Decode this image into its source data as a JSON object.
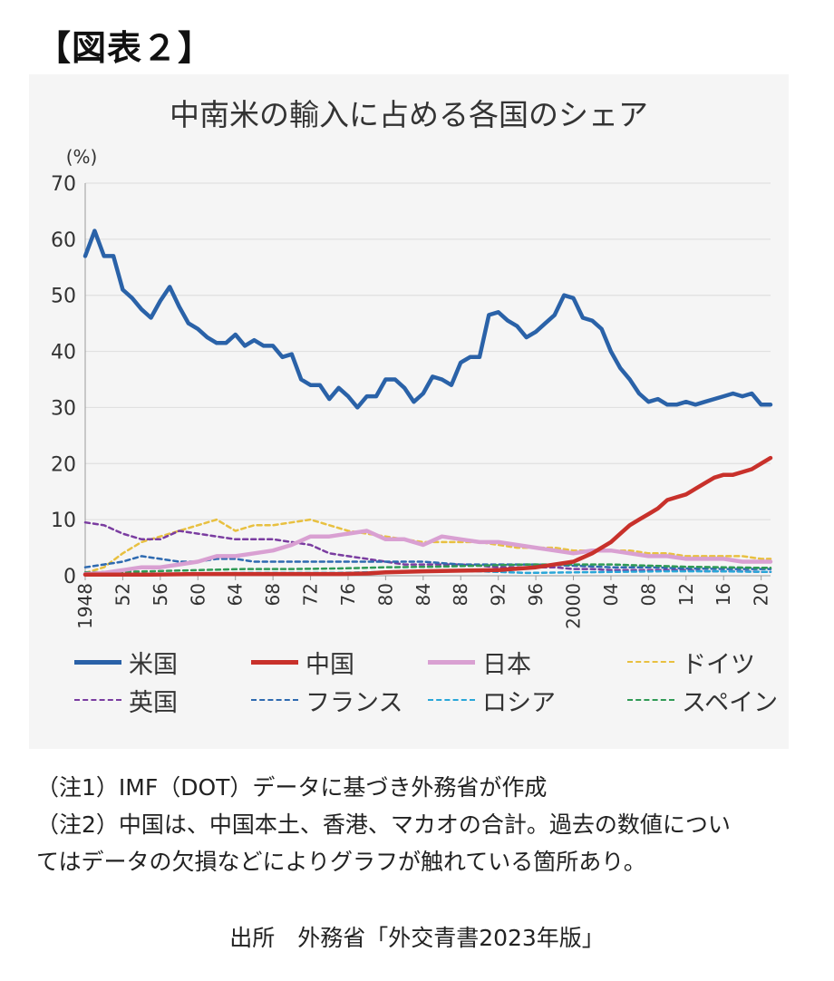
{
  "figure_label": "【図表２】",
  "notes": {
    "note1": "（注1）IMF（DOT）データに基づき外務省が作成",
    "note2_line1": "（注2）中国は、中国本土、香港、マカオの合計。過去の数値につい",
    "note2_line2": "てはデータの欠損などによりグラフが触れている箇所あり。"
  },
  "source": "出所　外務省「外交青書2023年版」",
  "chart_data": {
    "type": "line",
    "title": "中南米の輸入に占める各国のシェア",
    "ylabel": "(%)",
    "xlabel": "",
    "ylim": [
      0,
      70
    ],
    "xlim": [
      1948,
      2021
    ],
    "y_ticks": [
      "0",
      "10",
      "20",
      "30",
      "40",
      "50",
      "60",
      "70"
    ],
    "x_ticks": [
      {
        "year": 1948,
        "label": "1948"
      },
      {
        "year": 1952,
        "label": "52"
      },
      {
        "year": 1956,
        "label": "56"
      },
      {
        "year": 1960,
        "label": "60"
      },
      {
        "year": 1964,
        "label": "64"
      },
      {
        "year": 1968,
        "label": "68"
      },
      {
        "year": 1972,
        "label": "72"
      },
      {
        "year": 1976,
        "label": "76"
      },
      {
        "year": 1980,
        "label": "80"
      },
      {
        "year": 1984,
        "label": "84"
      },
      {
        "year": 1988,
        "label": "88"
      },
      {
        "year": 1992,
        "label": "92"
      },
      {
        "year": 1996,
        "label": "96"
      },
      {
        "year": 2000,
        "label": "2000"
      },
      {
        "year": 2004,
        "label": "04"
      },
      {
        "year": 2008,
        "label": "08"
      },
      {
        "year": 2012,
        "label": "12"
      },
      {
        "year": 2016,
        "label": "16"
      },
      {
        "year": 2020,
        "label": "20"
      }
    ],
    "grid": "horizontal",
    "legend_position": "bottom",
    "series": [
      {
        "name": "米国",
        "style": "solid",
        "width": 4.5,
        "color": "#2a62a8",
        "x": [
          1948,
          1949,
          1950,
          1951,
          1952,
          1953,
          1954,
          1955,
          1956,
          1957,
          1958,
          1959,
          1960,
          1961,
          1962,
          1963,
          1964,
          1965,
          1966,
          1967,
          1968,
          1969,
          1970,
          1971,
          1972,
          1973,
          1974,
          1975,
          1976,
          1977,
          1978,
          1979,
          1980,
          1981,
          1982,
          1983,
          1984,
          1985,
          1986,
          1987,
          1988,
          1989,
          1990,
          1991,
          1992,
          1993,
          1994,
          1995,
          1996,
          1997,
          1998,
          1999,
          2000,
          2001,
          2002,
          2003,
          2004,
          2005,
          2006,
          2007,
          2008,
          2009,
          2010,
          2011,
          2012,
          2013,
          2014,
          2015,
          2016,
          2017,
          2018,
          2019,
          2020,
          2021
        ],
        "y": [
          57,
          61.5,
          57,
          57,
          51,
          49.5,
          47.5,
          46,
          49,
          51.5,
          48,
          45,
          44,
          42.5,
          41.5,
          41.5,
          43,
          41,
          42,
          41,
          41,
          39,
          39.5,
          35,
          34,
          34,
          31.5,
          33.5,
          32,
          30,
          32,
          32,
          35,
          35,
          33.5,
          31,
          32.5,
          35.5,
          35,
          34,
          38,
          39,
          39,
          46.5,
          47,
          45.5,
          44.5,
          42.5,
          43.5,
          45,
          46.5,
          50,
          49.5,
          46,
          45.5,
          44,
          40,
          37,
          35,
          32.5,
          31,
          31.5,
          30.5,
          30.5,
          31,
          30.5,
          31,
          31.5,
          32,
          32.5,
          32,
          32.5,
          30.5,
          30.5
        ]
      },
      {
        "name": "中国",
        "style": "solid",
        "width": 4.5,
        "color": "#c8312b",
        "x": [
          1948,
          1955,
          1960,
          1965,
          1970,
          1975,
          1978,
          1980,
          1984,
          1988,
          1992,
          1996,
          2000,
          2002,
          2004,
          2005,
          2006,
          2007,
          2008,
          2009,
          2010,
          2011,
          2012,
          2013,
          2014,
          2015,
          2016,
          2017,
          2018,
          2019,
          2020,
          2021
        ],
        "y": [
          0.2,
          0.2,
          0.3,
          0.3,
          0.3,
          0.3,
          0.4,
          0.6,
          0.8,
          0.9,
          1,
          1.5,
          2.5,
          4,
          6,
          7.5,
          9,
          10,
          11,
          12,
          13.5,
          14,
          14.5,
          15.5,
          16.5,
          17.5,
          18,
          18,
          18.5,
          19,
          20,
          21
        ]
      },
      {
        "name": "日本",
        "style": "solid",
        "width": 4.5,
        "color": "#d9a0d2",
        "x": [
          1948,
          1950,
          1952,
          1954,
          1956,
          1958,
          1960,
          1962,
          1964,
          1966,
          1968,
          1970,
          1972,
          1974,
          1976,
          1978,
          1980,
          1982,
          1984,
          1986,
          1988,
          1990,
          1992,
          1994,
          1996,
          1998,
          2000,
          2002,
          2004,
          2006,
          2008,
          2010,
          2012,
          2014,
          2016,
          2018,
          2020,
          2021
        ],
        "y": [
          0.3,
          0.5,
          1,
          1.5,
          1.5,
          2,
          2.5,
          3.5,
          3.5,
          4,
          4.5,
          5.5,
          7,
          7,
          7.5,
          8,
          6.5,
          6.5,
          5.5,
          7,
          6.5,
          6,
          6,
          5.5,
          5,
          4.5,
          4,
          4.5,
          4.5,
          4,
          3.5,
          3.5,
          3,
          3,
          3,
          2.5,
          2.5,
          2.5
        ]
      },
      {
        "name": "ドイツ",
        "style": "dashed",
        "width": 2.5,
        "color": "#e8c040",
        "x": [
          1948,
          1950,
          1952,
          1954,
          1956,
          1958,
          1960,
          1962,
          1964,
          1966,
          1968,
          1970,
          1972,
          1974,
          1976,
          1978,
          1980,
          1982,
          1984,
          1986,
          1988,
          1990,
          1992,
          1994,
          1996,
          1998,
          2000,
          2002,
          2004,
          2006,
          2008,
          2010,
          2012,
          2014,
          2016,
          2018,
          2020,
          2021
        ],
        "y": [
          0.5,
          1.5,
          4,
          6,
          7,
          8,
          9,
          10,
          8,
          9,
          9,
          9.5,
          10,
          9,
          8,
          7.5,
          7,
          6.5,
          6,
          6,
          6,
          6,
          5.5,
          5,
          5,
          5,
          4.5,
          4.5,
          4.5,
          4.5,
          4,
          4,
          3.5,
          3.5,
          3.5,
          3.5,
          3,
          3
        ]
      },
      {
        "name": "英国",
        "style": "dashed",
        "width": 2.5,
        "color": "#7a3ca0",
        "x": [
          1948,
          1950,
          1952,
          1954,
          1956,
          1958,
          1960,
          1962,
          1964,
          1966,
          1968,
          1970,
          1972,
          1974,
          1976,
          1978,
          1980,
          1982,
          1984,
          1986,
          1988,
          1990,
          1992,
          1994,
          1996,
          1998,
          2000,
          2002,
          2004,
          2006,
          2008,
          2010,
          2012,
          2014,
          2016,
          2018,
          2020,
          2021
        ],
        "y": [
          9.5,
          9,
          7.5,
          6.5,
          6.5,
          8,
          7.5,
          7,
          6.5,
          6.5,
          6.5,
          6,
          5.5,
          4,
          3.5,
          3,
          2.5,
          2,
          2,
          2,
          2,
          1.8,
          1.5,
          1.5,
          1.5,
          1.5,
          1.2,
          1.2,
          1,
          1,
          1,
          1,
          1,
          0.8,
          0.8,
          0.8,
          0.7,
          0.7
        ]
      },
      {
        "name": "フランス",
        "style": "dashed",
        "width": 2.5,
        "color": "#2e6ab0",
        "x": [
          1948,
          1950,
          1952,
          1954,
          1956,
          1958,
          1960,
          1962,
          1964,
          1966,
          1968,
          1970,
          1972,
          1974,
          1976,
          1978,
          1980,
          1984,
          1988,
          1992,
          1996,
          2000,
          2004,
          2008,
          2012,
          2016,
          2020,
          2021
        ],
        "y": [
          1.5,
          2,
          2.5,
          3.5,
          3,
          2.5,
          2.5,
          3,
          3,
          2.5,
          2.5,
          2.5,
          2.5,
          2.5,
          2.5,
          2.5,
          2.5,
          2.5,
          2,
          2,
          2,
          1.8,
          1.5,
          1.5,
          1.3,
          1.2,
          1.2,
          1.2
        ]
      },
      {
        "name": "ロシア",
        "style": "dashed",
        "width": 2.5,
        "color": "#29a6d8",
        "x": [
          1948,
          1955,
          1960,
          1965,
          1970,
          1975,
          1980,
          1985,
          1990,
          1995,
          2000,
          2005,
          2010,
          2015,
          2020,
          2021
        ],
        "y": [
          0.1,
          0.2,
          0.4,
          0.5,
          0.5,
          0.5,
          0.7,
          0.9,
          0.8,
          0.5,
          0.6,
          0.7,
          0.8,
          0.8,
          0.7,
          0.7
        ]
      },
      {
        "name": "スペイン",
        "style": "dashed",
        "width": 2.5,
        "color": "#2f9a55",
        "x": [
          1948,
          1955,
          1960,
          1965,
          1970,
          1975,
          1980,
          1985,
          1990,
          1995,
          2000,
          2004,
          2008,
          2012,
          2016,
          2020,
          2021
        ],
        "y": [
          0.6,
          0.8,
          1,
          1.2,
          1.2,
          1.3,
          1.5,
          1.6,
          1.8,
          2,
          2,
          2,
          1.8,
          1.6,
          1.5,
          1.4,
          1.4
        ]
      }
    ]
  }
}
